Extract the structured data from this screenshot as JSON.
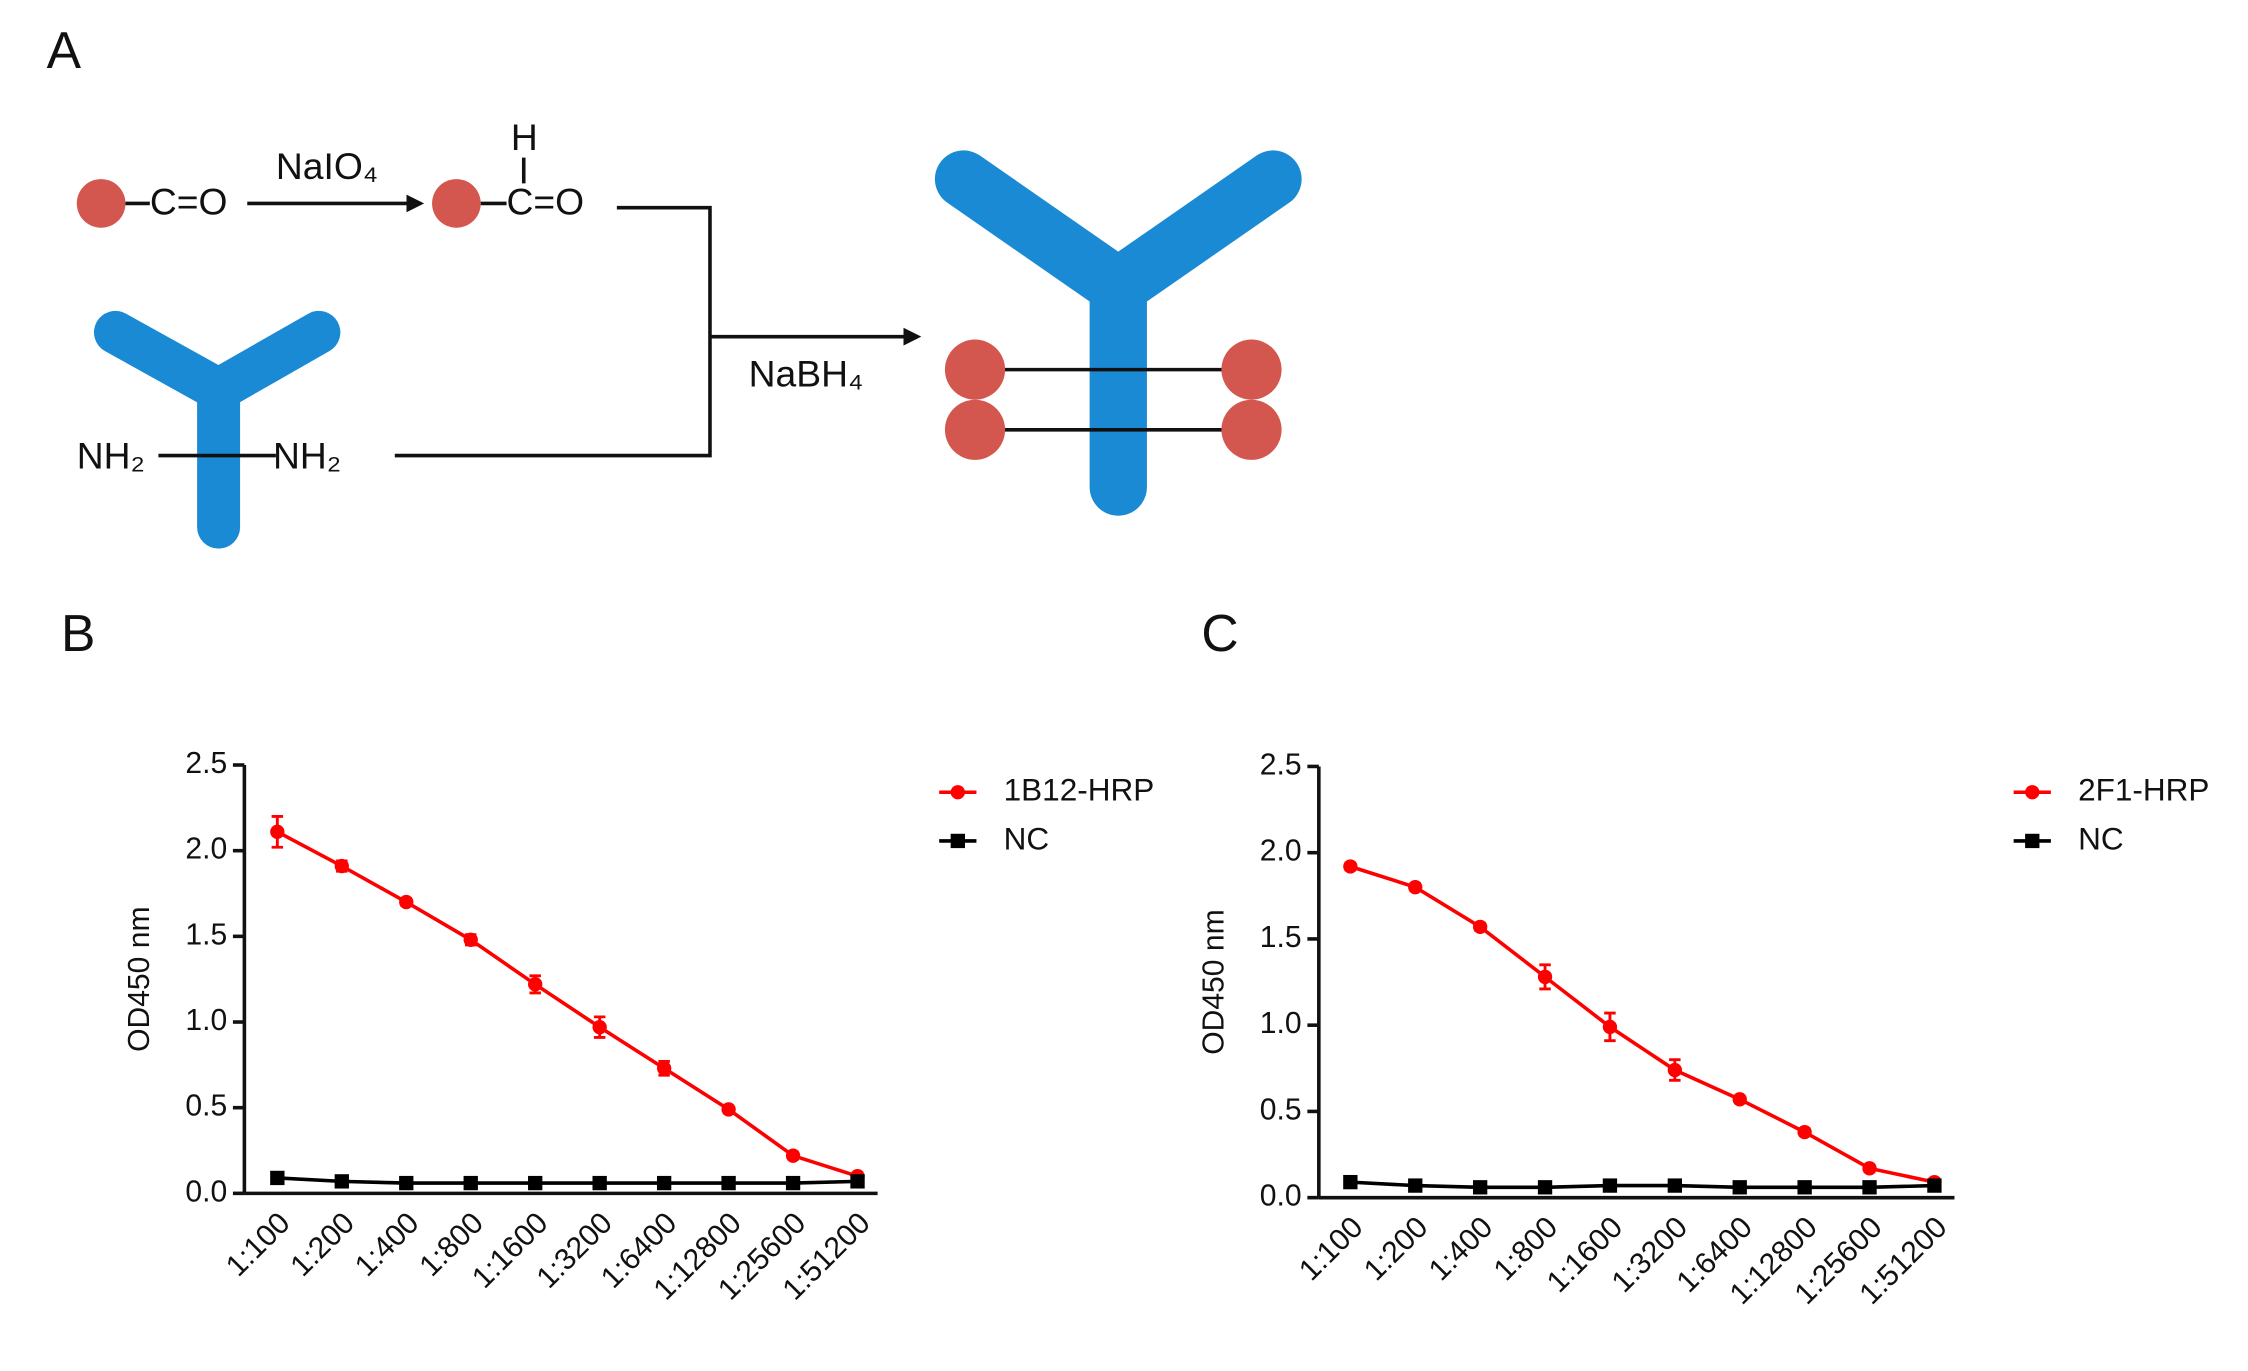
{
  "diagram": {
    "panel_label": "A",
    "left_group": "C=O",
    "oxidant": "NaIO₄",
    "aldehyde_h": "H",
    "right_group": "C=O",
    "amine_left": "NH₂",
    "amine_right": "NH₂",
    "reductant": "NaBH₄"
  },
  "chart_data": [
    {
      "type": "line",
      "panel_label": "B",
      "y_label": "OD450 nm",
      "categories": [
        "1:100",
        "1:200",
        "1:400",
        "1:800",
        "1:1600",
        "1:3200",
        "1:6400",
        "1:12800",
        "1:25600",
        "1:51200"
      ],
      "ylim": [
        0,
        2.5
      ],
      "yticks": [
        {
          "value": 0,
          "label": "0.0"
        },
        0.5,
        {
          "value": 1,
          "label": "1.0"
        },
        1.5,
        {
          "value": 2,
          "label": "2.0"
        },
        2.5
      ],
      "legend": "right",
      "series": [
        {
          "name": "1B12-HRP",
          "color": "#ff0000",
          "marker": "circle",
          "values": [
            2.11,
            1.91,
            1.7,
            1.48,
            1.22,
            0.97,
            0.73,
            0.49,
            0.22,
            0.1
          ],
          "errors": [
            0.09,
            0.03,
            0.02,
            0.03,
            0.05,
            0.06,
            0.04,
            0.02,
            0.02,
            0.02
          ]
        },
        {
          "name": "NC",
          "color": "#000000",
          "marker": "square",
          "values": [
            0.09,
            0.07,
            0.06,
            0.06,
            0.06,
            0.06,
            0.06,
            0.06,
            0.06,
            0.07
          ]
        }
      ]
    },
    {
      "type": "line",
      "panel_label": "C",
      "y_label": "OD450 nm",
      "categories": [
        "1:100",
        "1:200",
        "1:400",
        "1:800",
        "1:1600",
        "1:3200",
        "1:6400",
        "1:12800",
        "1:25600",
        "1:51200"
      ],
      "ylim": [
        0,
        2.5
      ],
      "yticks": [
        {
          "value": 0,
          "label": "0.0"
        },
        0.5,
        {
          "value": 1,
          "label": "1.0"
        },
        1.5,
        {
          "value": 2,
          "label": "2.0"
        },
        2.5
      ],
      "legend": "right",
      "series": [
        {
          "name": "2F1-HRP",
          "color": "#ff0000",
          "marker": "circle",
          "values": [
            1.92,
            1.8,
            1.57,
            1.28,
            0.99,
            0.74,
            0.57,
            0.38,
            0.17,
            0.09
          ],
          "errors": [
            0.02,
            0.02,
            0.02,
            0.07,
            0.08,
            0.06,
            0.02,
            0.02,
            0.02,
            0.02
          ]
        },
        {
          "name": "NC",
          "color": "#000000",
          "marker": "square",
          "values": [
            0.09,
            0.07,
            0.06,
            0.06,
            0.07,
            0.07,
            0.06,
            0.06,
            0.06,
            0.07
          ]
        }
      ]
    }
  ]
}
